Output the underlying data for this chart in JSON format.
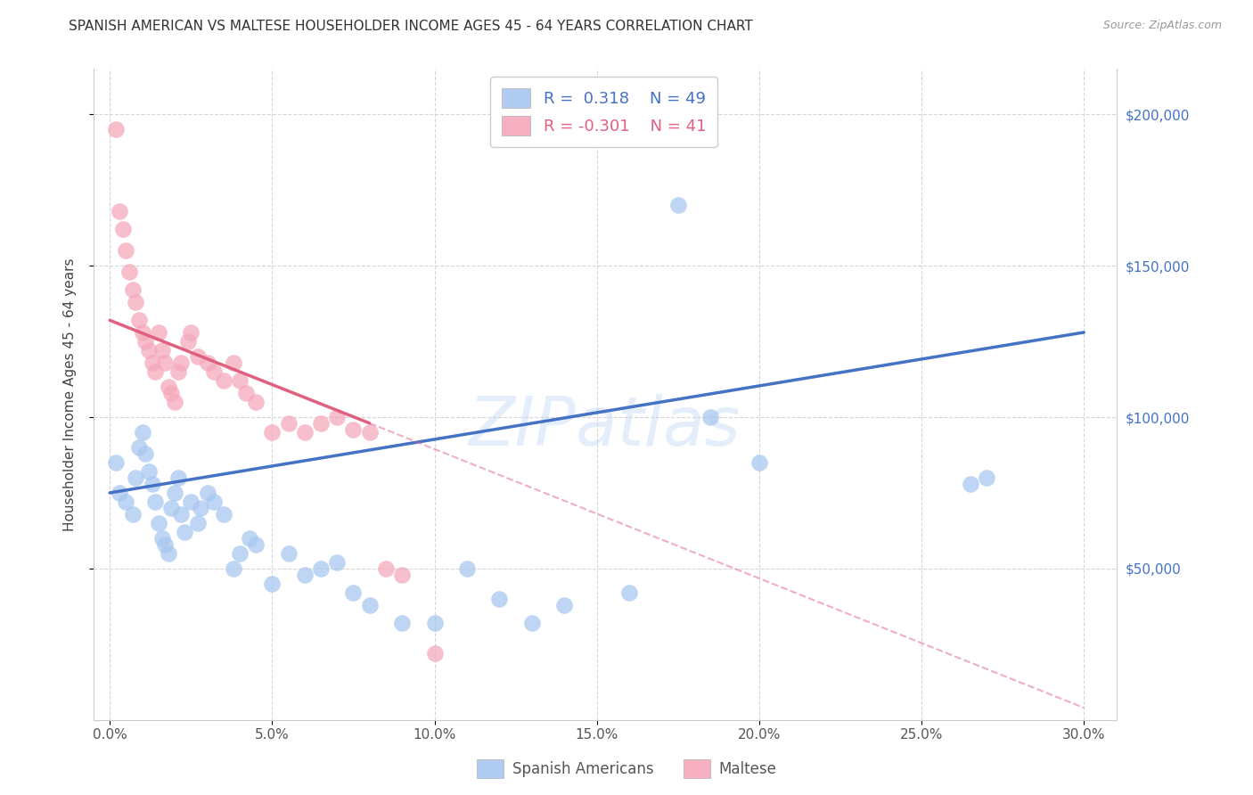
{
  "title": "SPANISH AMERICAN VS MALTESE HOUSEHOLDER INCOME AGES 45 - 64 YEARS CORRELATION CHART",
  "source": "Source: ZipAtlas.com",
  "ylabel": "Householder Income Ages 45 - 64 years",
  "xlabel_ticks": [
    "0.0%",
    "5.0%",
    "10.0%",
    "15.0%",
    "20.0%",
    "25.0%",
    "30.0%"
  ],
  "xlabel_vals": [
    0.0,
    5.0,
    10.0,
    15.0,
    20.0,
    25.0,
    30.0
  ],
  "ylim": [
    0,
    215000
  ],
  "xlim": [
    -0.5,
    31.0
  ],
  "ytick_labels": [
    "$50,000",
    "$100,000",
    "$150,000",
    "$200,000"
  ],
  "ytick_vals": [
    50000,
    100000,
    150000,
    200000
  ],
  "blue_R": "0.318",
  "blue_N": "49",
  "pink_R": "-0.301",
  "pink_N": "41",
  "blue_color": "#A8C8F0",
  "pink_color": "#F5A8BC",
  "blue_line_color": "#4472C4",
  "pink_line_color": "#E06080",
  "watermark": "ZIPatlas",
  "legend_label_blue": "R =  0.318    N = 49",
  "legend_label_pink": "R = -0.301    N = 41",
  "bottom_label_blue": "Spanish Americans",
  "bottom_label_pink": "Maltese",
  "spanish_x": [
    0.2,
    0.3,
    0.5,
    0.7,
    0.8,
    0.9,
    1.0,
    1.1,
    1.2,
    1.3,
    1.4,
    1.5,
    1.6,
    1.7,
    1.8,
    1.9,
    2.0,
    2.1,
    2.2,
    2.3,
    2.5,
    2.7,
    2.8,
    3.0,
    3.2,
    3.5,
    3.8,
    4.0,
    4.3,
    4.5,
    5.0,
    5.5,
    6.0,
    6.5,
    7.0,
    7.5,
    8.0,
    9.0,
    10.0,
    11.0,
    12.0,
    13.0,
    14.0,
    16.0,
    17.5,
    18.5,
    20.0,
    26.5,
    27.0
  ],
  "spanish_y": [
    85000,
    75000,
    72000,
    68000,
    80000,
    90000,
    95000,
    88000,
    82000,
    78000,
    72000,
    65000,
    60000,
    58000,
    55000,
    70000,
    75000,
    80000,
    68000,
    62000,
    72000,
    65000,
    70000,
    75000,
    72000,
    68000,
    50000,
    55000,
    60000,
    58000,
    45000,
    55000,
    48000,
    50000,
    52000,
    42000,
    38000,
    32000,
    32000,
    50000,
    40000,
    32000,
    38000,
    42000,
    170000,
    100000,
    85000,
    78000,
    80000
  ],
  "maltese_x": [
    0.2,
    0.3,
    0.4,
    0.5,
    0.6,
    0.7,
    0.8,
    0.9,
    1.0,
    1.1,
    1.2,
    1.3,
    1.4,
    1.5,
    1.6,
    1.7,
    1.8,
    1.9,
    2.0,
    2.1,
    2.2,
    2.4,
    2.5,
    2.7,
    3.0,
    3.2,
    3.5,
    3.8,
    4.0,
    4.2,
    4.5,
    5.0,
    5.5,
    6.0,
    6.5,
    7.0,
    7.5,
    8.0,
    8.5,
    9.0,
    10.0
  ],
  "maltese_y": [
    195000,
    168000,
    162000,
    155000,
    148000,
    142000,
    138000,
    132000,
    128000,
    125000,
    122000,
    118000,
    115000,
    128000,
    122000,
    118000,
    110000,
    108000,
    105000,
    115000,
    118000,
    125000,
    128000,
    120000,
    118000,
    115000,
    112000,
    118000,
    112000,
    108000,
    105000,
    95000,
    98000,
    95000,
    98000,
    100000,
    96000,
    95000,
    50000,
    48000,
    22000
  ],
  "blue_line_x0": 0.0,
  "blue_line_y0": 75000,
  "blue_line_x1": 30.0,
  "blue_line_y1": 128000,
  "pink_line_x0": 0.0,
  "pink_line_y0": 132000,
  "pink_line_x1": 8.0,
  "pink_line_y1": 98000,
  "pink_dash_x0": 8.0,
  "pink_dash_y0": 98000,
  "pink_dash_x1": 30.0,
  "pink_dash_y1": 4000
}
